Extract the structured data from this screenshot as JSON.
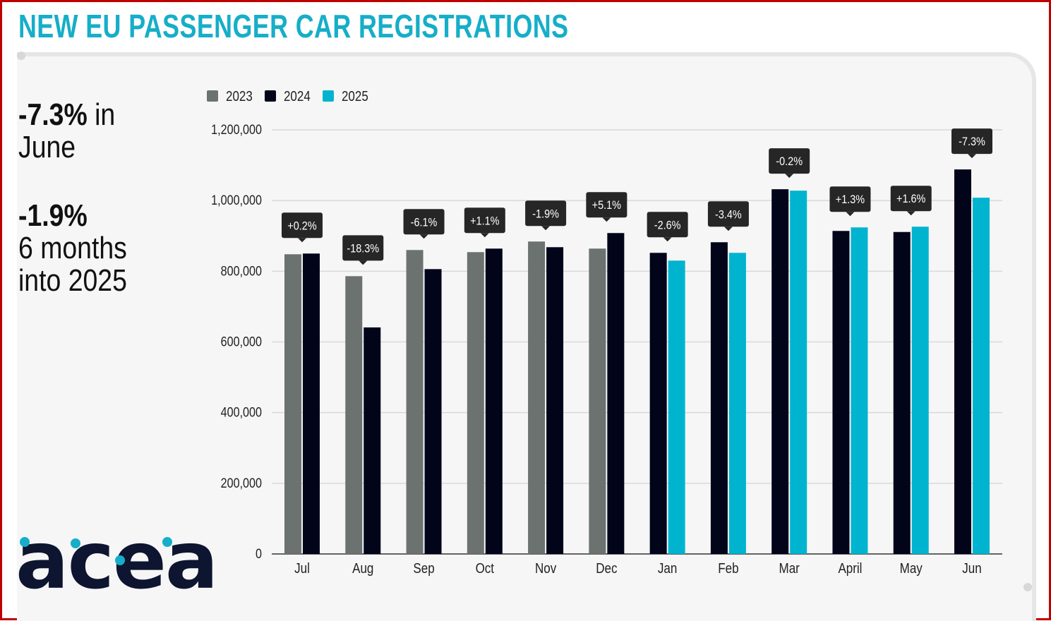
{
  "header": {
    "title": "NEW EU PASSENGER CAR REGISTRATIONS"
  },
  "summary": {
    "june_value": "-7.3%",
    "june_text": "in",
    "june_month": "June",
    "ytd_value": "-1.9%",
    "ytd_line1": "6 months",
    "ytd_line2": "into 2025"
  },
  "logo": {
    "text": "acea",
    "color": "#0d1530",
    "accent": "#16aec8"
  },
  "chart_data": {
    "type": "bar",
    "title": "",
    "xlabel": "",
    "ylabel": "",
    "ylim": [
      0,
      1200000
    ],
    "yticks": [
      0,
      200000,
      400000,
      600000,
      800000,
      1000000,
      1200000
    ],
    "ytick_labels": [
      "0",
      "200,000",
      "400,000",
      "600,000",
      "800,000",
      "1,000,000",
      "1,200,000"
    ],
    "grid": true,
    "legend_position": "top-left",
    "categories": [
      "Jul",
      "Aug",
      "Sep",
      "Oct",
      "Nov",
      "Dec",
      "Jan",
      "Feb",
      "Mar",
      "April",
      "May",
      "Jun"
    ],
    "series": [
      {
        "name": "2023",
        "color": "#6c7270",
        "values": [
          848000,
          786000,
          860000,
          854000,
          884000,
          864000,
          null,
          null,
          null,
          null,
          null,
          null
        ]
      },
      {
        "name": "2024",
        "color": "#02051a",
        "values": [
          850000,
          641000,
          806000,
          864000,
          868000,
          908000,
          852000,
          882000,
          1032000,
          914000,
          911000,
          1088000
        ]
      },
      {
        "name": "2025",
        "color": "#00b4d0",
        "values": [
          null,
          null,
          null,
          null,
          null,
          null,
          830000,
          852000,
          1028000,
          924000,
          926000,
          1008000
        ]
      }
    ],
    "annotations": [
      "+0.2%",
      "-18.3%",
      "-6.1%",
      "+1.1%",
      "-1.9%",
      "+5.1%",
      "-2.6%",
      "-3.4%",
      "-0.2%",
      "+1.3%",
      "+1.6%",
      "-7.3%"
    ]
  }
}
